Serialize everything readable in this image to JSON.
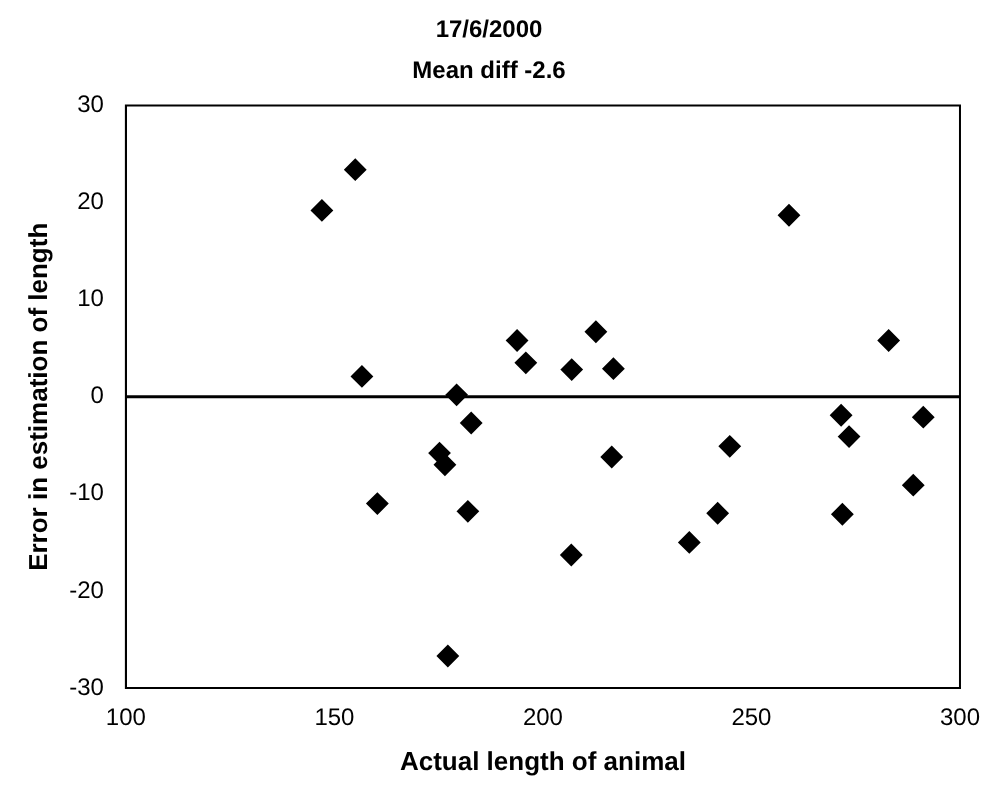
{
  "chart_data": {
    "type": "scatter",
    "title": "17/6/2000",
    "subtitle": "Mean diff -2.6",
    "xlabel": "Actual length of animal",
    "ylabel": "Error in estimation of length",
    "series": [
      {
        "color": "#000000",
        "x": [
          147,
          155,
          156.6,
          160.3,
          175.2,
          176.5,
          177.2,
          179.3,
          182,
          182.8,
          193.8,
          195.9,
          206.8,
          206.9,
          212.7,
          216.5,
          216.9,
          235.1,
          241.9,
          244.8,
          259,
          271.5,
          271.8,
          273.4,
          282.9,
          288.8,
          291.2
        ],
        "values": [
          19.2,
          23.4,
          2.1,
          -11,
          -5.8,
          -7,
          -26.7,
          0.2,
          -11.8,
          -2.7,
          5.8,
          3.5,
          -16.3,
          2.8,
          6.7,
          -6.2,
          2.9,
          -15,
          -12,
          -5.1,
          18.7,
          -1.9,
          -12.1,
          -4.1,
          5.8,
          -9.1,
          -2.1
        ]
      }
    ],
    "marker": "diamond",
    "xlim": [
      100,
      300
    ],
    "xticks": [
      100,
      150,
      200,
      250,
      300
    ],
    "ylim": [
      -30,
      30
    ],
    "yticks": [
      -30,
      -20,
      -10,
      0,
      10,
      20,
      30
    ],
    "grid": false,
    "legend": false,
    "ref_lines": [
      {
        "axis": "y",
        "value": 0,
        "color": "#000000"
      }
    ]
  }
}
